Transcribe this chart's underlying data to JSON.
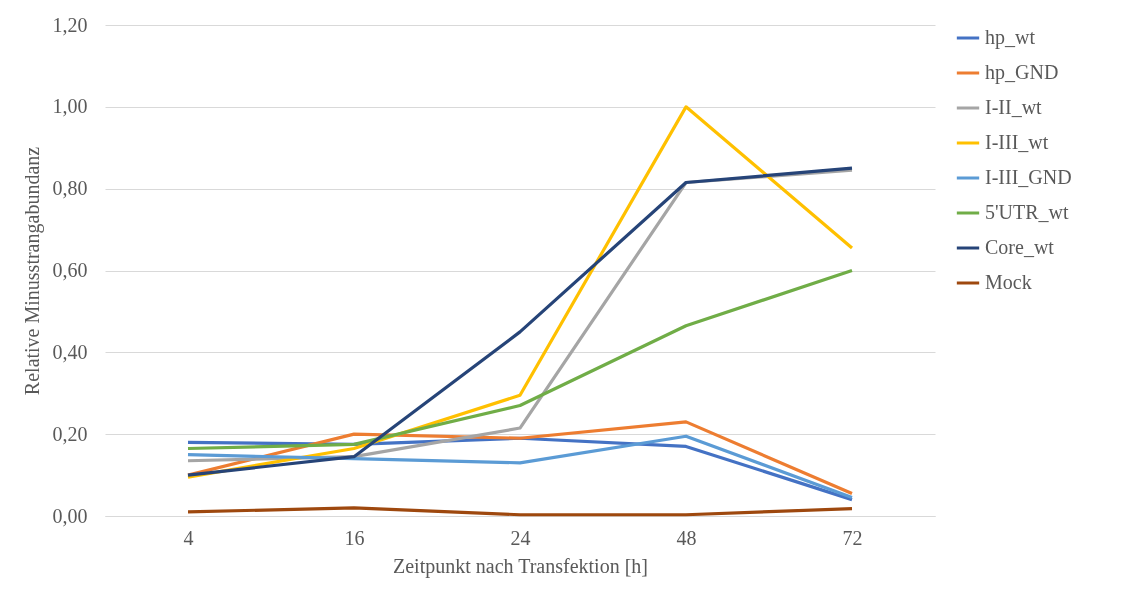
{
  "chart_data": {
    "type": "line",
    "xlabel": "Zeitpunkt nach Transfektion [h]",
    "ylabel": "Relative Minusstrangabundanz",
    "categories": [
      "4",
      "16",
      "24",
      "48",
      "72"
    ],
    "ylim": [
      0,
      1.2
    ],
    "yticks": [
      {
        "value": 0,
        "label": "0,00"
      },
      {
        "value": 0.2,
        "label": "0,20"
      },
      {
        "value": 0.4,
        "label": "0,40"
      },
      {
        "value": 0.6,
        "label": "0,60"
      },
      {
        "value": 0.8,
        "label": "0,80"
      },
      {
        "value": 1,
        "label": "1,00"
      },
      {
        "value": 1.2,
        "label": "1,20"
      }
    ],
    "grid": "y",
    "legend": "right",
    "marker": "none",
    "line_style": "solid",
    "series": [
      {
        "name": "hp_wt",
        "color": "#4472c4",
        "values": [
          0.18,
          0.175,
          0.19,
          0.17,
          0.04
        ]
      },
      {
        "name": "hp_GND",
        "color": "#ed7d31",
        "values": [
          0.1,
          0.2,
          0.19,
          0.23,
          0.055
        ]
      },
      {
        "name": "I-II_wt",
        "color": "#a5a5a5",
        "values": [
          0.135,
          0.145,
          0.215,
          0.815,
          0.845
        ]
      },
      {
        "name": "I-III_wt",
        "color": "#ffc000",
        "values": [
          0.095,
          0.165,
          0.295,
          1.0,
          0.655
        ]
      },
      {
        "name": "I-III_GND",
        "color": "#5b9bd5",
        "values": [
          0.15,
          0.14,
          0.13,
          0.195,
          0.045
        ]
      },
      {
        "name": "5'UTR_wt",
        "color": "#70ad47",
        "values": [
          0.165,
          0.175,
          0.27,
          0.465,
          0.6
        ]
      },
      {
        "name": "Core_wt",
        "color": "#264478",
        "values": [
          0.1,
          0.145,
          0.45,
          0.815,
          0.85
        ]
      },
      {
        "name": "Mock",
        "color": "#9e480e",
        "values": [
          0.01,
          0.02,
          0.003,
          0.003,
          0.018
        ]
      }
    ]
  }
}
